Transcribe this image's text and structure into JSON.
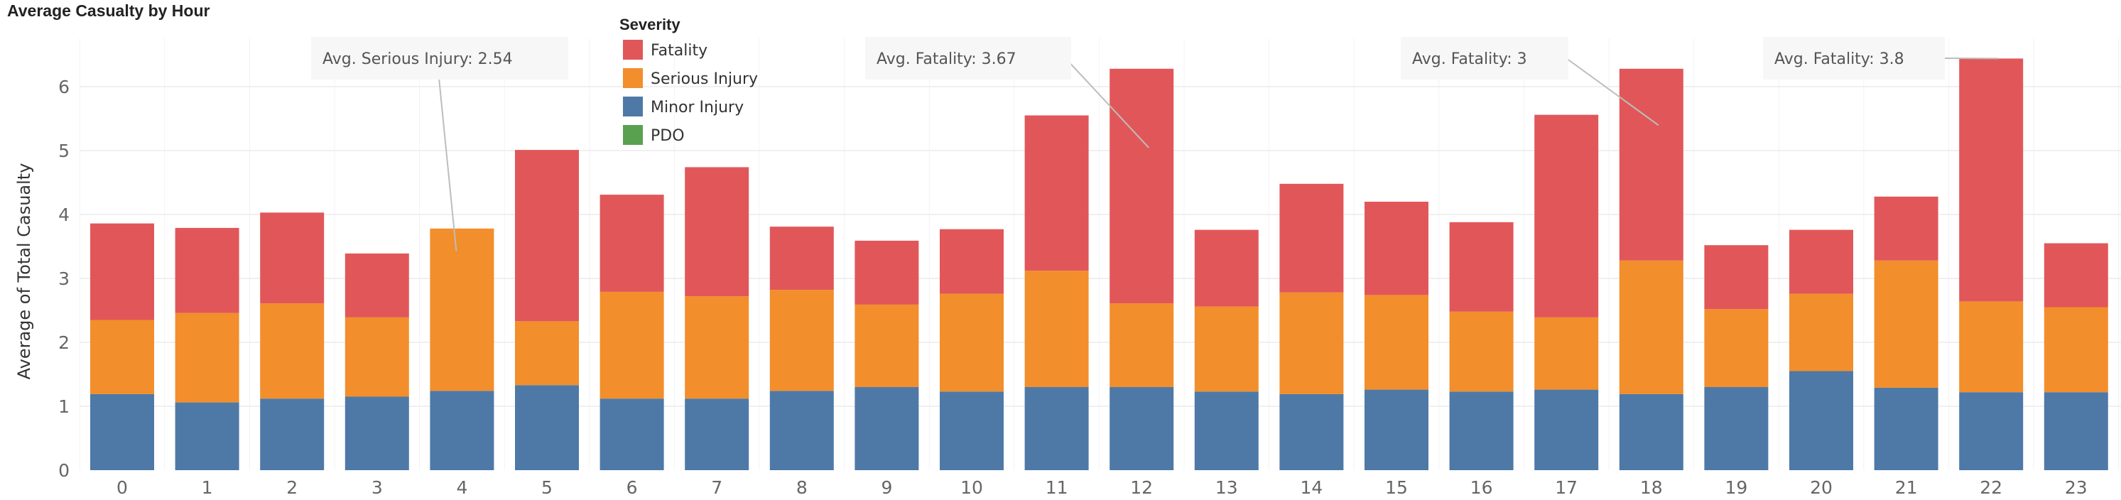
{
  "chart_data": {
    "type": "bar",
    "stacked": true,
    "title": "Average Casualty by Hour",
    "xlabel": "",
    "ylabel": "Average of Total Casualty",
    "ylim": [
      0,
      6.5
    ],
    "yticks": [
      0,
      1,
      2,
      3,
      4,
      5,
      6
    ],
    "grid": true,
    "categories": [
      "0",
      "1",
      "2",
      "3",
      "4",
      "5",
      "6",
      "7",
      "8",
      "9",
      "10",
      "11",
      "12",
      "13",
      "14",
      "15",
      "16",
      "17",
      "18",
      "19",
      "20",
      "21",
      "22",
      "23"
    ],
    "series": [
      {
        "name": "Minor Injury",
        "color": "#4e79a7",
        "values": [
          1.19,
          1.06,
          1.12,
          1.15,
          1.24,
          1.33,
          1.12,
          1.12,
          1.24,
          1.3,
          1.23,
          1.3,
          1.3,
          1.23,
          1.19,
          1.26,
          1.23,
          1.26,
          1.19,
          1.3,
          1.55,
          1.29,
          1.22,
          1.22
        ]
      },
      {
        "name": "Serious Injury",
        "color": "#f28e2b",
        "values": [
          1.16,
          1.4,
          1.49,
          1.24,
          2.54,
          1.0,
          1.67,
          1.6,
          1.58,
          1.29,
          1.53,
          1.82,
          1.31,
          1.33,
          1.59,
          1.48,
          1.25,
          1.13,
          2.09,
          1.22,
          1.21,
          1.99,
          1.42,
          1.33
        ]
      },
      {
        "name": "Fatality",
        "color": "#e15759",
        "values": [
          1.51,
          1.33,
          1.42,
          1.0,
          0,
          2.68,
          1.52,
          2.02,
          0.99,
          1.0,
          1.01,
          2.43,
          3.67,
          1.2,
          1.7,
          1.46,
          1.4,
          3.17,
          3.0,
          1.0,
          1.0,
          1.0,
          3.8,
          1.0
        ]
      },
      {
        "name": "PDO",
        "color": "#59a14f",
        "values": [
          0,
          0,
          0,
          0,
          0,
          0,
          0,
          0,
          0,
          0,
          0,
          0,
          0,
          0,
          0,
          0,
          0,
          0,
          0,
          0,
          0,
          0,
          0,
          0
        ]
      }
    ],
    "legend": {
      "title": "Severity",
      "placement": "top-center",
      "items": [
        {
          "label": "Fatality",
          "color": "#e15759"
        },
        {
          "label": "Serious Injury",
          "color": "#f28e2b"
        },
        {
          "label": "Minor Injury",
          "color": "#4e79a7"
        },
        {
          "label": "PDO",
          "color": "#59a14f"
        }
      ]
    },
    "annotations": [
      {
        "text": "Avg. Serious Injury: 2.54",
        "category": "4",
        "series": "Serious Injury"
      },
      {
        "text": "Avg. Fatality:  3.67",
        "category": "12",
        "series": "Fatality"
      },
      {
        "text": "Avg. Fatality: 3",
        "category": "18",
        "series": "Fatality"
      },
      {
        "text": "Avg. Fatality: 3.8",
        "category": "22",
        "series": "Fatality"
      }
    ]
  }
}
